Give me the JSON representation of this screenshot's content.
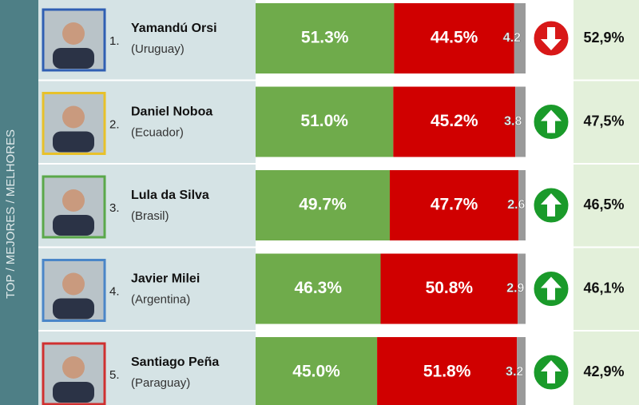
{
  "sidebar_label": "TOP / MEJORES / MELHORES",
  "colors": {
    "approve": "#6fab4b",
    "disapprove": "#d00000",
    "neutral": "#9a9a9a"
  },
  "rows": [
    {
      "rank": "1.",
      "name": "Yamandú Orsi",
      "country": "(Uruguay)",
      "values": [
        51.3,
        44.5,
        4.2
      ],
      "value_labels": [
        "51.3%",
        "44.5%",
        "4.2"
      ],
      "score": "52,9%",
      "trend": "down",
      "frame": "#2f5fb3"
    },
    {
      "rank": "2.",
      "name": "Daniel Noboa",
      "country": "(Ecuador)",
      "values": [
        51.0,
        45.2,
        3.8
      ],
      "value_labels": [
        "51.0%",
        "45.2%",
        "3.8"
      ],
      "score": "47,5%",
      "trend": "up",
      "frame": "#e8c12a"
    },
    {
      "rank": "3.",
      "name": "Lula da Silva",
      "country": "(Brasil)",
      "values": [
        49.7,
        47.7,
        2.6
      ],
      "value_labels": [
        "49.7%",
        "47.7%",
        "2.6"
      ],
      "score": "46,5%",
      "trend": "up",
      "frame": "#5aa84a"
    },
    {
      "rank": "4.",
      "name": "Javier Milei",
      "country": "(Argentina)",
      "values": [
        46.3,
        50.8,
        2.9
      ],
      "value_labels": [
        "46.3%",
        "50.8%",
        "2.9"
      ],
      "score": "46,1%",
      "trend": "up",
      "frame": "#4a86c8"
    },
    {
      "rank": "5.",
      "name": "Santiago Peña",
      "country": "(Paraguay)",
      "values": [
        45.0,
        51.8,
        3.2
      ],
      "value_labels": [
        "45.0%",
        "51.8%",
        "3.2"
      ],
      "score": "42,9%",
      "trend": "up",
      "frame": "#d03030"
    }
  ]
}
